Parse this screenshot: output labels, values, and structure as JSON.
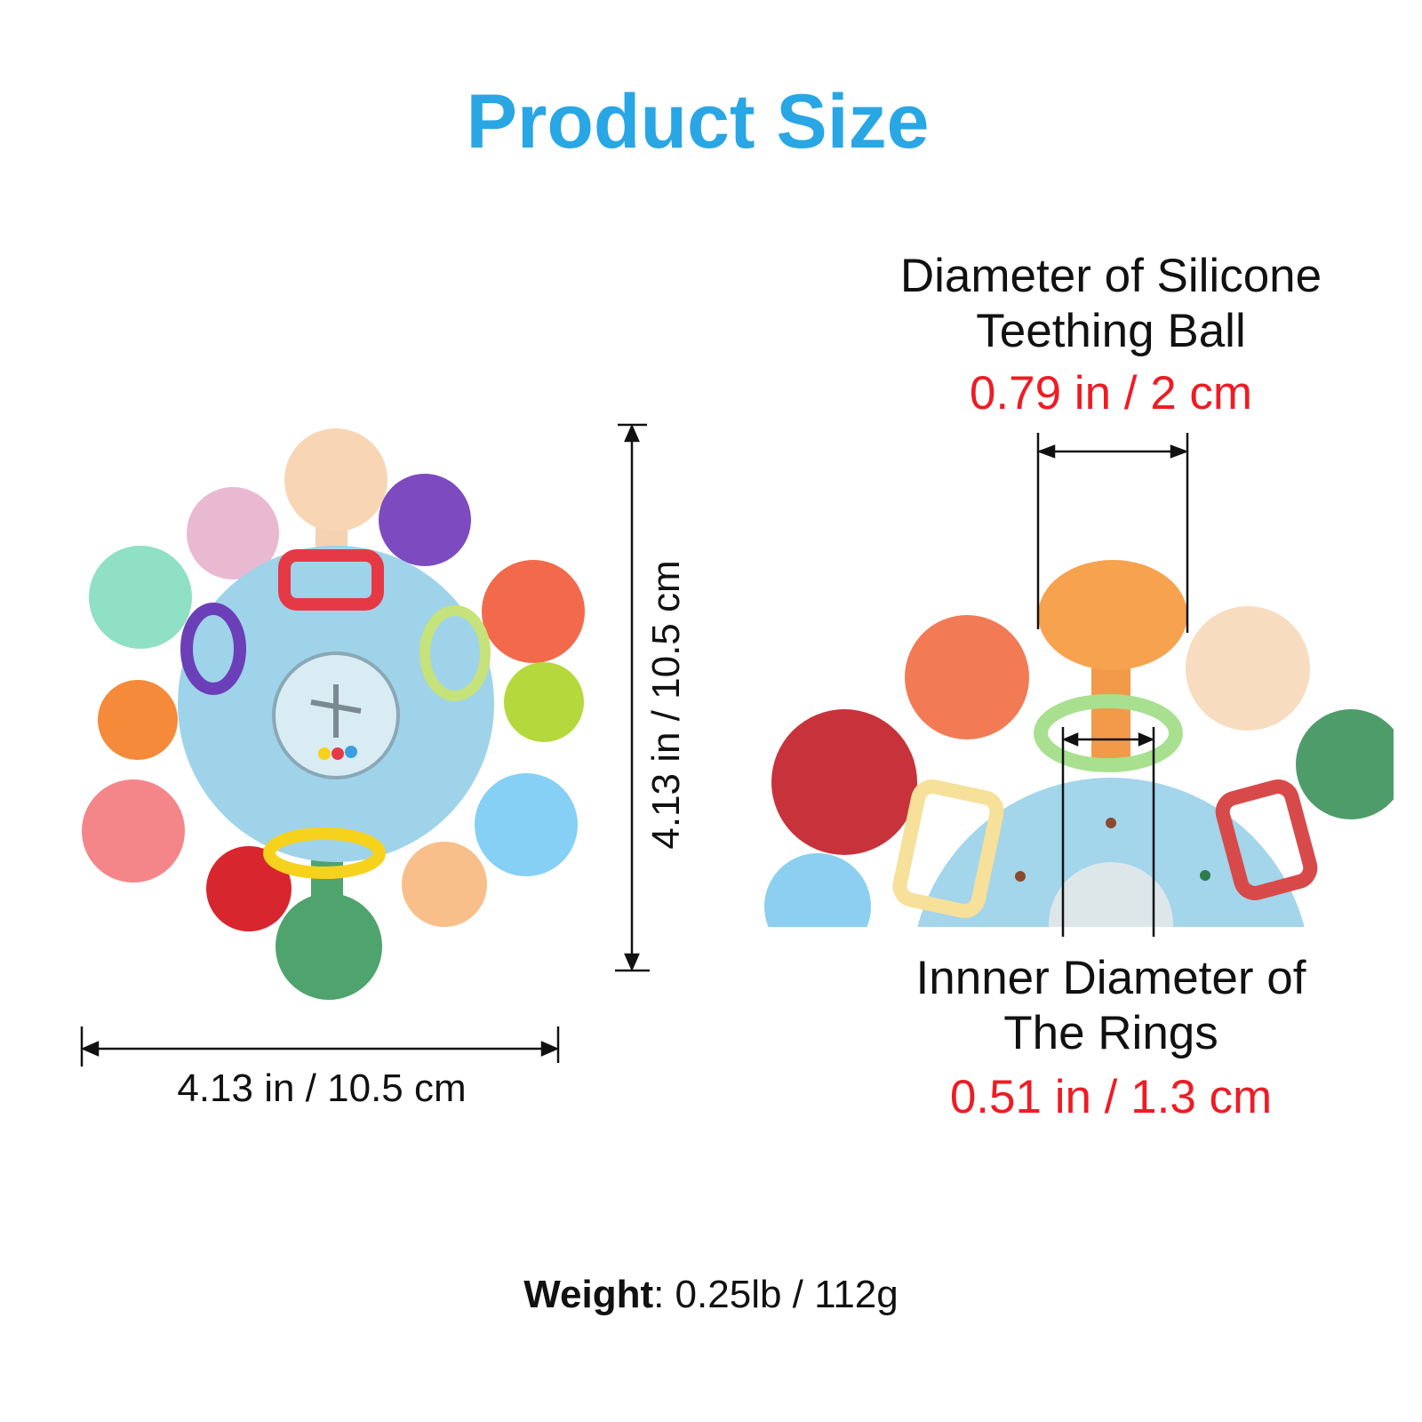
{
  "title": "Product Size",
  "left_product": {
    "height_label": "4.13 in / 10.5 cm",
    "width_label": "4.13 in / 10.5 cm"
  },
  "ball_diameter": {
    "label_line1": "Diameter of Silicone",
    "label_line2": "Teething Ball",
    "value": "0.79 in / 2 cm"
  },
  "ring_diameter": {
    "label_line1": "Innner Diameter of",
    "label_line2": "The Rings",
    "value": "0.51 in / 1.3 cm"
  },
  "weight": {
    "label": "Weight",
    "value": ": 0.25lb / 112g"
  },
  "colors": {
    "title": "#29a6e4",
    "value_text": "#ee1c24",
    "ball_body": "#9fd3ea"
  }
}
